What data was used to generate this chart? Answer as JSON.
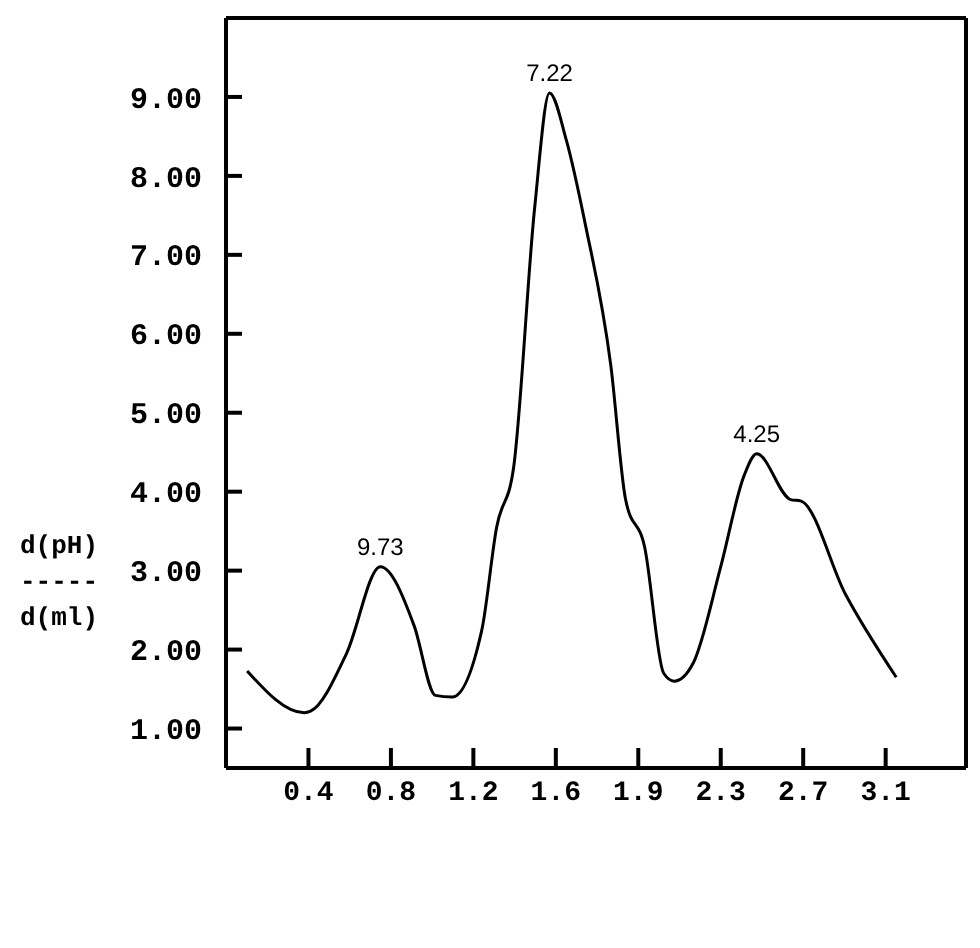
{
  "chart_data": {
    "type": "line",
    "ylabel": "d(pH)\n-----\nd(ml)",
    "x": [
      0.1,
      0.37,
      0.4,
      0.57,
      0.73,
      0.89,
      0.99,
      1.07,
      1.21,
      1.28,
      1.36,
      1.46,
      1.53,
      1.61,
      1.7,
      1.82,
      1.89,
      1.98,
      2.07,
      2.12,
      2.21,
      2.34,
      2.45,
      2.51,
      2.67,
      2.72,
      2.93,
      3.17
    ],
    "series": [
      {
        "color": "#000000",
        "values": [
          1.73,
          1.2,
          1.22,
          1.95,
          3.05,
          2.3,
          1.42,
          1.4,
          2.25,
          3.55,
          4.3,
          7.6,
          9.05,
          8.45,
          7.38,
          5.6,
          3.9,
          3.3,
          1.7,
          1.6,
          1.83,
          3.05,
          4.2,
          4.48,
          3.9,
          3.88,
          2.7,
          1.65
        ]
      }
    ],
    "xlim": [
      0,
      3.5
    ],
    "ylim": [
      0.5,
      10
    ],
    "xticks": [
      {
        "value": 0.39,
        "label": "0.4"
      },
      {
        "value": 0.78,
        "label": "0.8"
      },
      {
        "value": 1.17,
        "label": "1.2"
      },
      {
        "value": 1.56,
        "label": "1.6"
      },
      {
        "value": 1.95,
        "label": "1.9"
      },
      {
        "value": 2.34,
        "label": "2.3"
      },
      {
        "value": 2.73,
        "label": "2.7"
      },
      {
        "value": 3.12,
        "label": "3.1"
      }
    ],
    "yticks": [
      {
        "value": 1,
        "label": "1.00"
      },
      {
        "value": 2,
        "label": "2.00"
      },
      {
        "value": 3,
        "label": "3.00"
      },
      {
        "value": 4,
        "label": "4.00"
      },
      {
        "value": 5,
        "label": "5.00"
      },
      {
        "value": 6,
        "label": "6.00"
      },
      {
        "value": 7,
        "label": "7.00"
      },
      {
        "value": 8,
        "label": "8.00"
      },
      {
        "value": 9,
        "label": "9.00"
      }
    ],
    "annotations": [
      {
        "text": "9.73",
        "x": 0.73,
        "y": 3.05
      },
      {
        "text": "7.22",
        "x": 1.53,
        "y": 9.05
      },
      {
        "text": "4.25",
        "x": 2.51,
        "y": 4.48
      }
    ],
    "grid": false,
    "legend": false,
    "marker": "none",
    "line_style": "solid"
  }
}
